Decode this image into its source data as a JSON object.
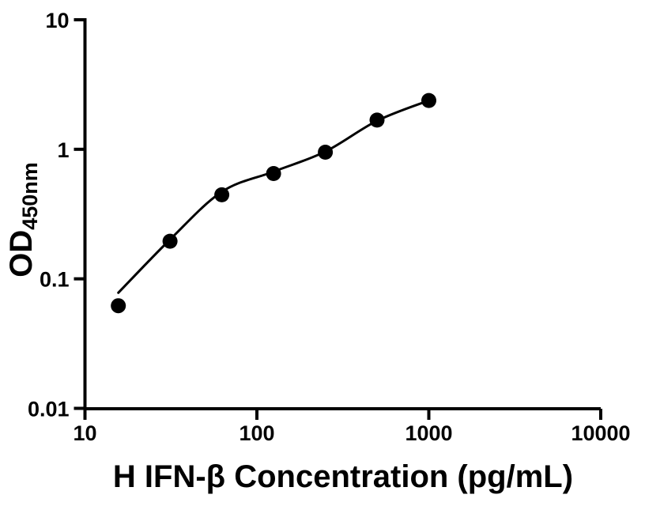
{
  "figure": {
    "background_color": "#ffffff",
    "ink_color": "#000000"
  },
  "chart_data": {
    "type": "scatter",
    "title": "",
    "xlabel": "H IFN-β Concentration (pg/mL)",
    "ylabel_main": "OD",
    "ylabel_sub": "450nm",
    "x_scale": "log10",
    "y_scale": "log10",
    "xlim": [
      10,
      10000
    ],
    "ylim": [
      0.01,
      10
    ],
    "x_ticks": [
      10,
      100,
      1000,
      10000
    ],
    "x_tick_labels": [
      "10",
      "100",
      "1000",
      "10000"
    ],
    "y_ticks": [
      0.01,
      0.1,
      1,
      10
    ],
    "y_tick_labels": [
      "0.01",
      "0.1",
      "1",
      "10"
    ],
    "grid": false,
    "legend": "none",
    "series": [
      {
        "name": "standard-points",
        "type": "scatter",
        "marker": "filled-circle",
        "color": "#000000",
        "points": [
          {
            "x": 15.625,
            "y": 0.062
          },
          {
            "x": 31.25,
            "y": 0.195
          },
          {
            "x": 62.5,
            "y": 0.445
          },
          {
            "x": 125,
            "y": 0.65
          },
          {
            "x": 250,
            "y": 0.95
          },
          {
            "x": 500,
            "y": 1.68
          },
          {
            "x": 1000,
            "y": 2.38
          }
        ]
      },
      {
        "name": "fitted-curve",
        "type": "line",
        "color": "#000000",
        "points": [
          {
            "x": 15.625,
            "y": 0.078
          },
          {
            "x": 31.25,
            "y": 0.201
          },
          {
            "x": 62.5,
            "y": 0.47
          },
          {
            "x": 125,
            "y": 0.672
          },
          {
            "x": 250,
            "y": 0.96
          },
          {
            "x": 500,
            "y": 1.66
          },
          {
            "x": 1000,
            "y": 2.38
          }
        ]
      }
    ]
  }
}
